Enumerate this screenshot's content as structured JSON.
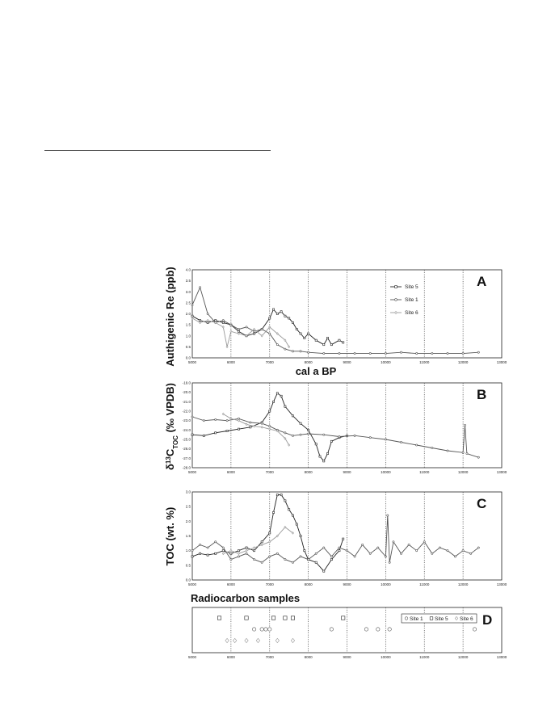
{
  "colors": {
    "site5": "#222222",
    "site1": "#555555",
    "site6": "#9a9a9a",
    "grid": "#444444"
  },
  "chart_data": [
    {
      "panel": "A",
      "type": "line",
      "ylabel": "Authigenic Re (ppb)",
      "xlabel": "cal a BP",
      "xlim": [
        5000,
        13000
      ],
      "ylim": [
        0,
        4
      ],
      "xticks": [
        "5000",
        "6000",
        "7000",
        "8000",
        "9000",
        "10000",
        "11000",
        "12000",
        "13000"
      ],
      "yticks": [
        "0.0",
        "0.5",
        "1.0",
        "1.5",
        "2.0",
        "2.5",
        "3.0",
        "3.5",
        "4.0"
      ],
      "legend_position": "top-right",
      "series": [
        {
          "name": "Site 5",
          "x": [
            5000,
            5200,
            5400,
            5600,
            5800,
            6000,
            6200,
            6400,
            6600,
            6800,
            7000,
            7100,
            7200,
            7300,
            7400,
            7500,
            7600,
            7700,
            7800,
            7900,
            8000,
            8200,
            8400,
            8500,
            8600,
            8800,
            8900
          ],
          "y": [
            1.9,
            1.7,
            1.6,
            1.7,
            1.6,
            1.5,
            1.2,
            1.0,
            1.1,
            1.3,
            1.8,
            2.2,
            2.0,
            2.1,
            1.9,
            1.8,
            1.6,
            1.3,
            1.1,
            0.9,
            1.1,
            0.8,
            0.6,
            0.9,
            0.6,
            0.8,
            0.7
          ]
        },
        {
          "name": "Site 1",
          "x": [
            5000,
            5200,
            5400,
            5600,
            5800,
            6000,
            6200,
            6400,
            6600,
            6800,
            7000,
            7200,
            7400,
            7600,
            7800,
            8000,
            8400,
            8800,
            9200,
            9600,
            10000,
            10400,
            10800,
            11200,
            11600,
            12000,
            12400
          ],
          "y": [
            2.4,
            3.2,
            2.0,
            1.6,
            1.7,
            1.5,
            1.3,
            1.4,
            1.2,
            1.3,
            1.1,
            0.6,
            0.4,
            0.3,
            0.3,
            0.25,
            0.2,
            0.2,
            0.2,
            0.2,
            0.2,
            0.25,
            0.2,
            0.2,
            0.2,
            0.2,
            0.25
          ]
        },
        {
          "name": "Site 6",
          "x": [
            5000,
            5200,
            5400,
            5600,
            5800,
            5900,
            6000,
            6200,
            6400,
            6600,
            6800,
            7000,
            7200,
            7400,
            7500
          ],
          "y": [
            1.8,
            1.6,
            1.7,
            1.6,
            1.4,
            0.5,
            1.2,
            1.1,
            1.0,
            1.3,
            1.0,
            1.4,
            1.1,
            0.8,
            0.5
          ]
        }
      ]
    },
    {
      "panel": "B",
      "type": "line",
      "ylabel": "δ13CTOC (‰ VPDB)",
      "ylabel_parts": {
        "delta": "δ",
        "sup": "13",
        "base": "C",
        "sub": "TOC",
        "rest": " (‰ VPDB)"
      },
      "xlim": [
        5000,
        13000
      ],
      "ylim": [
        -28,
        -19
      ],
      "xticks": [
        "5000",
        "6000",
        "7000",
        "8000",
        "9000",
        "10000",
        "11000",
        "12000",
        "13000"
      ],
      "yticks": [
        "-19.0",
        "-20.0",
        "-21.0",
        "-22.0",
        "-23.0",
        "-24.0",
        "-25.0",
        "-26.0",
        "-27.0",
        "-28.0"
      ],
      "series": [
        {
          "name": "Site 5",
          "x": [
            5000,
            5300,
            5600,
            5900,
            6200,
            6500,
            6800,
            7000,
            7100,
            7200,
            7300,
            7400,
            7600,
            7800,
            8000,
            8200,
            8300,
            8400,
            8500,
            8600,
            8800,
            9000
          ],
          "y": [
            -24.5,
            -24.6,
            -24.3,
            -24.1,
            -23.9,
            -23.7,
            -23.2,
            -22.0,
            -21.0,
            -20.1,
            -20.4,
            -21.5,
            -22.5,
            -23.3,
            -24.0,
            -25.5,
            -26.8,
            -27.3,
            -26.5,
            -25.2,
            -24.8,
            -24.6
          ]
        },
        {
          "name": "Site 1",
          "x": [
            5000,
            5300,
            5600,
            5900,
            6200,
            6500,
            6800,
            7000,
            7200,
            7400,
            7600,
            7800,
            8000,
            8400,
            8800,
            9200,
            9600,
            10000,
            10400,
            10800,
            11200,
            11600,
            12000,
            12050,
            12100,
            12400
          ],
          "y": [
            -22.6,
            -23.0,
            -22.9,
            -23.0,
            -22.8,
            -23.2,
            -23.3,
            -23.6,
            -24.0,
            -24.3,
            -24.6,
            -24.5,
            -24.4,
            -24.5,
            -24.7,
            -24.6,
            -24.8,
            -25.0,
            -25.3,
            -25.6,
            -25.9,
            -26.2,
            -26.4,
            -23.5,
            -26.5,
            -26.9
          ]
        },
        {
          "name": "Site 6",
          "x": [
            5800,
            6000,
            6200,
            6400,
            6600,
            6800,
            7000,
            7200,
            7400,
            7500
          ],
          "y": [
            -22.3,
            -22.8,
            -23.0,
            -23.4,
            -23.6,
            -23.7,
            -23.9,
            -24.1,
            -24.9,
            -25.6
          ]
        }
      ]
    },
    {
      "panel": "C",
      "type": "line",
      "ylabel": "TOC (wt. %)",
      "xlim": [
        5000,
        13000
      ],
      "ylim": [
        0,
        3
      ],
      "xticks": [
        "5000",
        "6000",
        "7000",
        "8000",
        "9000",
        "10000",
        "11000",
        "12000",
        "13000"
      ],
      "yticks": [
        "0.0",
        "0.5",
        "1.0",
        "1.5",
        "2.0",
        "2.5",
        "3.0"
      ],
      "series": [
        {
          "name": "Site 5",
          "x": [
            5000,
            5200,
            5400,
            5600,
            5800,
            6000,
            6200,
            6400,
            6600,
            6800,
            7000,
            7100,
            7200,
            7300,
            7400,
            7500,
            7600,
            7700,
            7800,
            7900,
            8000,
            8200,
            8400,
            8600,
            8800,
            8900
          ],
          "y": [
            0.8,
            0.9,
            0.85,
            0.9,
            1.0,
            0.9,
            1.0,
            1.1,
            1.0,
            1.3,
            1.6,
            2.3,
            2.9,
            2.9,
            2.7,
            2.4,
            2.2,
            1.9,
            1.5,
            1.0,
            0.7,
            0.6,
            0.3,
            0.7,
            1.0,
            1.4
          ]
        },
        {
          "name": "Site 1",
          "x": [
            5000,
            5200,
            5400,
            5600,
            5800,
            6000,
            6200,
            6400,
            6600,
            6800,
            7000,
            7200,
            7400,
            7600,
            7800,
            8000,
            8200,
            8400,
            8600,
            8800,
            9000,
            9200,
            9400,
            9600,
            9800,
            10000,
            10050,
            10100,
            10200,
            10400,
            10600,
            10800,
            11000,
            11200,
            11400,
            11600,
            11800,
            12000,
            12200,
            12400
          ],
          "y": [
            1.0,
            1.2,
            1.1,
            1.3,
            1.1,
            0.7,
            0.8,
            0.9,
            0.7,
            0.6,
            0.8,
            0.9,
            0.7,
            0.6,
            0.8,
            0.7,
            0.9,
            1.1,
            0.8,
            1.1,
            1.0,
            0.8,
            1.2,
            0.9,
            1.1,
            0.8,
            2.2,
            0.6,
            1.3,
            0.9,
            1.2,
            1.0,
            1.3,
            0.9,
            1.1,
            1.0,
            0.8,
            1.0,
            0.9,
            1.1
          ]
        },
        {
          "name": "Site 6",
          "x": [
            5800,
            6000,
            6200,
            6400,
            6600,
            6800,
            7000,
            7200,
            7400,
            7600
          ],
          "y": [
            0.9,
            1.0,
            0.9,
            1.0,
            1.1,
            1.2,
            1.3,
            1.5,
            1.8,
            1.6
          ]
        }
      ]
    },
    {
      "panel": "D",
      "type": "scatter",
      "title": "Radiocarbon samples",
      "xlim": [
        5000,
        13000
      ],
      "xticks": [
        "5000",
        "6000",
        "7000",
        "8000",
        "9000",
        "10000",
        "11000",
        "12000",
        "13000"
      ],
      "legend_position": "top-right",
      "series": [
        {
          "name": "Site 1",
          "marker": "circle",
          "x": [
            6600,
            6800,
            6900,
            7000,
            8600,
            9500,
            9800,
            10100,
            12300
          ]
        },
        {
          "name": "Site 5",
          "marker": "square",
          "x": [
            5700,
            6400,
            7100,
            7400,
            7600,
            8900
          ]
        },
        {
          "name": "Site 6",
          "marker": "diamond",
          "x": [
            5900,
            6100,
            6400,
            6700,
            7200,
            7600
          ]
        }
      ]
    }
  ]
}
